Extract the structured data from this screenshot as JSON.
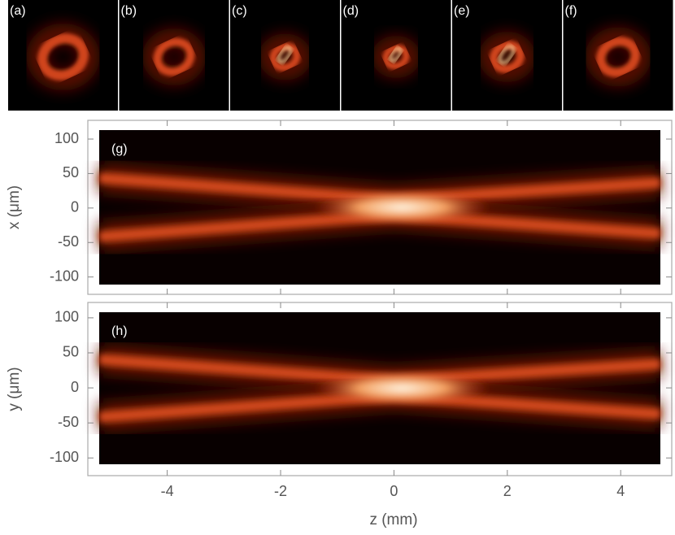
{
  "insets": {
    "labels": [
      "(a)",
      "(b)",
      "(c)",
      "(d)",
      "(e)",
      "(f)"
    ]
  },
  "chart_data": [
    {
      "type": "heatmap",
      "label": "(g)",
      "ylabel": "x (μm)",
      "ylim": [
        -111,
        113
      ],
      "yticks": [
        100,
        50,
        0,
        -50,
        -100
      ]
    },
    {
      "type": "heatmap",
      "label": "(h)",
      "ylabel": "y (μm)",
      "ylim": [
        -109,
        108
      ],
      "yticks": [
        100,
        50,
        0,
        -50,
        -100
      ],
      "xlabel": "z (mm)",
      "xlim": [
        -5.2,
        4.7
      ],
      "xticks": [
        -4,
        -2,
        0,
        2,
        4
      ]
    }
  ]
}
